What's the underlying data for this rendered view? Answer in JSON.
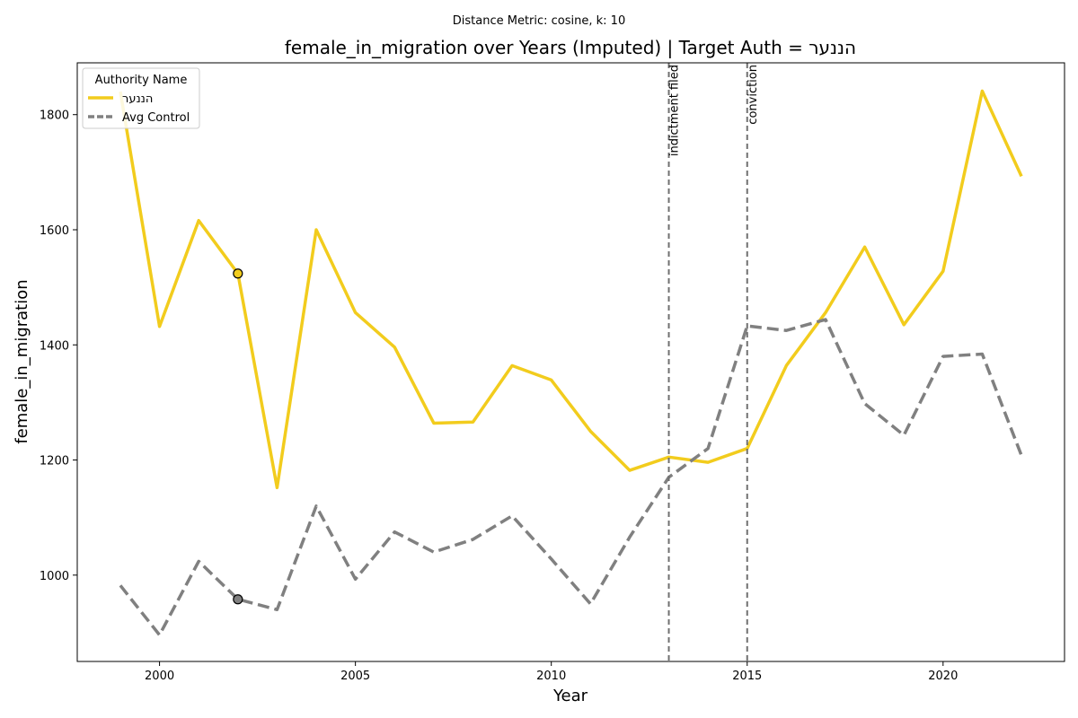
{
  "chart_data": {
    "type": "line",
    "subtitle": "Distance Metric: cosine, k: 10",
    "title": "female_in_migration over Years (Imputed) | Target Auth = הננער",
    "xlabel": "Year",
    "ylabel": "female_in_migration",
    "xlim": [
      1997.9,
      2023.1
    ],
    "ylim": [
      850,
      1890
    ],
    "x_ticks": [
      2000,
      2005,
      2010,
      2015,
      2020
    ],
    "y_ticks": [
      1000,
      1200,
      1400,
      1600,
      1800
    ],
    "grid": false,
    "legend": {
      "title": "Authority Name",
      "placement": "top-left"
    },
    "x": [
      1999,
      2000,
      2001,
      2002,
      2003,
      2004,
      2005,
      2006,
      2007,
      2008,
      2009,
      2010,
      2011,
      2012,
      2013,
      2014,
      2015,
      2016,
      2017,
      2018,
      2019,
      2020,
      2021,
      2022
    ],
    "series": [
      {
        "name": "הננער",
        "color": "#f2cc1d",
        "style": "solid",
        "values": [
          1840,
          1432,
          1616,
          1524,
          1152,
          1600,
          1456,
          1396,
          1264,
          1266,
          1364,
          1339,
          1250,
          1182,
          1205,
          1196,
          1220,
          1364,
          1456,
          1570,
          1435,
          1528,
          1841,
          1693
        ]
      },
      {
        "name": "Avg Control",
        "color": "#808080",
        "style": "dashed",
        "values": [
          982,
          896,
          1024,
          958,
          940,
          1120,
          993,
          1075,
          1040,
          1062,
          1103,
          1028,
          950,
          1066,
          1170,
          1220,
          1433,
          1425,
          1444,
          1298,
          1243,
          1380,
          1384,
          1208
        ]
      }
    ],
    "markers": [
      {
        "series": "הננער",
        "x": 2002,
        "y": 1524,
        "color": "#f2cc1d"
      },
      {
        "series": "Avg Control",
        "x": 2002,
        "y": 958,
        "color": "#808080"
      }
    ],
    "events": [
      {
        "x": 2013,
        "label": "indictment filed"
      },
      {
        "x": 2015,
        "label": "conviction"
      }
    ]
  }
}
